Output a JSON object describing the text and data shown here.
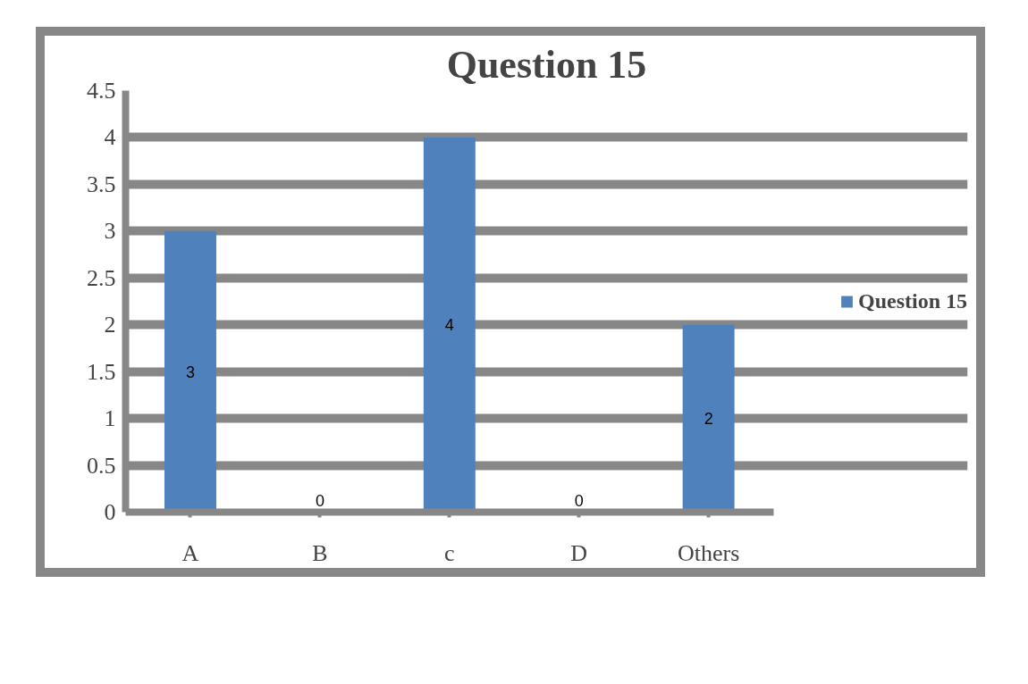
{
  "chart_data": {
    "type": "bar",
    "title": "Question 15",
    "categories": [
      "A",
      "B",
      "c",
      "D",
      "Others"
    ],
    "series": [
      {
        "name": "Question 15",
        "color": "#4f81bd",
        "values": [
          3,
          0,
          4,
          0,
          2
        ]
      }
    ],
    "ylim": [
      0,
      4.5
    ],
    "yticks": [
      0,
      0.5,
      1,
      1.5,
      2,
      2.5,
      3,
      3.5,
      4,
      4.5
    ],
    "grid": "y",
    "legend": "right",
    "data_labels": true
  }
}
